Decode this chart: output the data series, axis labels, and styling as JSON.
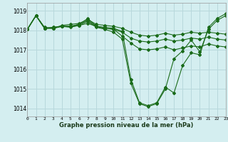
{
  "xlabel": "Graphe pression niveau de la mer (hPa)",
  "bg_color": "#d4eef0",
  "grid_color": "#b8d8dc",
  "line_color": "#1a6b1a",
  "xlim": [
    0,
    23
  ],
  "ylim": [
    1013.6,
    1019.4
  ],
  "yticks": [
    1014,
    1015,
    1016,
    1017,
    1018,
    1019
  ],
  "xticks": [
    0,
    1,
    2,
    3,
    4,
    5,
    6,
    7,
    8,
    9,
    10,
    11,
    12,
    13,
    14,
    15,
    16,
    17,
    18,
    19,
    20,
    21,
    22,
    23
  ],
  "series": [
    [
      1018.05,
      1018.75,
      1018.1,
      1018.1,
      1018.2,
      1018.2,
      1018.3,
      1018.6,
      1018.2,
      1018.1,
      1018.05,
      1017.7,
      1017.35,
      1017.05,
      1017.0,
      1017.05,
      1017.15,
      1017.0,
      1017.1,
      1017.2,
      1017.15,
      1017.3,
      1017.2,
      1017.15
    ],
    [
      1018.05,
      1018.75,
      1018.1,
      1018.1,
      1018.2,
      1018.2,
      1018.25,
      1018.35,
      1018.2,
      1018.1,
      1018.05,
      1017.9,
      1017.6,
      1017.45,
      1017.4,
      1017.45,
      1017.55,
      1017.45,
      1017.5,
      1017.6,
      1017.55,
      1017.65,
      1017.55,
      1017.5
    ],
    [
      1018.05,
      1018.75,
      1018.15,
      1018.1,
      1018.25,
      1018.3,
      1018.35,
      1018.55,
      1018.3,
      1018.25,
      1018.2,
      1018.1,
      1017.9,
      1017.75,
      1017.7,
      1017.75,
      1017.85,
      1017.75,
      1017.8,
      1017.9,
      1017.85,
      1017.9,
      1017.85,
      1017.8
    ],
    [
      1018.05,
      1018.75,
      1018.1,
      1018.15,
      1018.2,
      1018.2,
      1018.3,
      1018.5,
      1018.2,
      1018.15,
      1018.1,
      1017.95,
      1015.5,
      1014.3,
      1014.15,
      1014.3,
      1015.1,
      1014.8,
      1016.2,
      1016.85,
      1016.75,
      1018.15,
      1018.6,
      1018.85
    ],
    [
      1018.05,
      1018.75,
      1018.1,
      1018.15,
      1018.2,
      1018.15,
      1018.25,
      1018.45,
      1018.15,
      1018.05,
      1017.9,
      1017.55,
      1015.3,
      1014.25,
      1014.1,
      1014.25,
      1015.0,
      1016.55,
      1016.95,
      1017.5,
      1016.9,
      1018.05,
      1018.5,
      1018.75
    ]
  ]
}
